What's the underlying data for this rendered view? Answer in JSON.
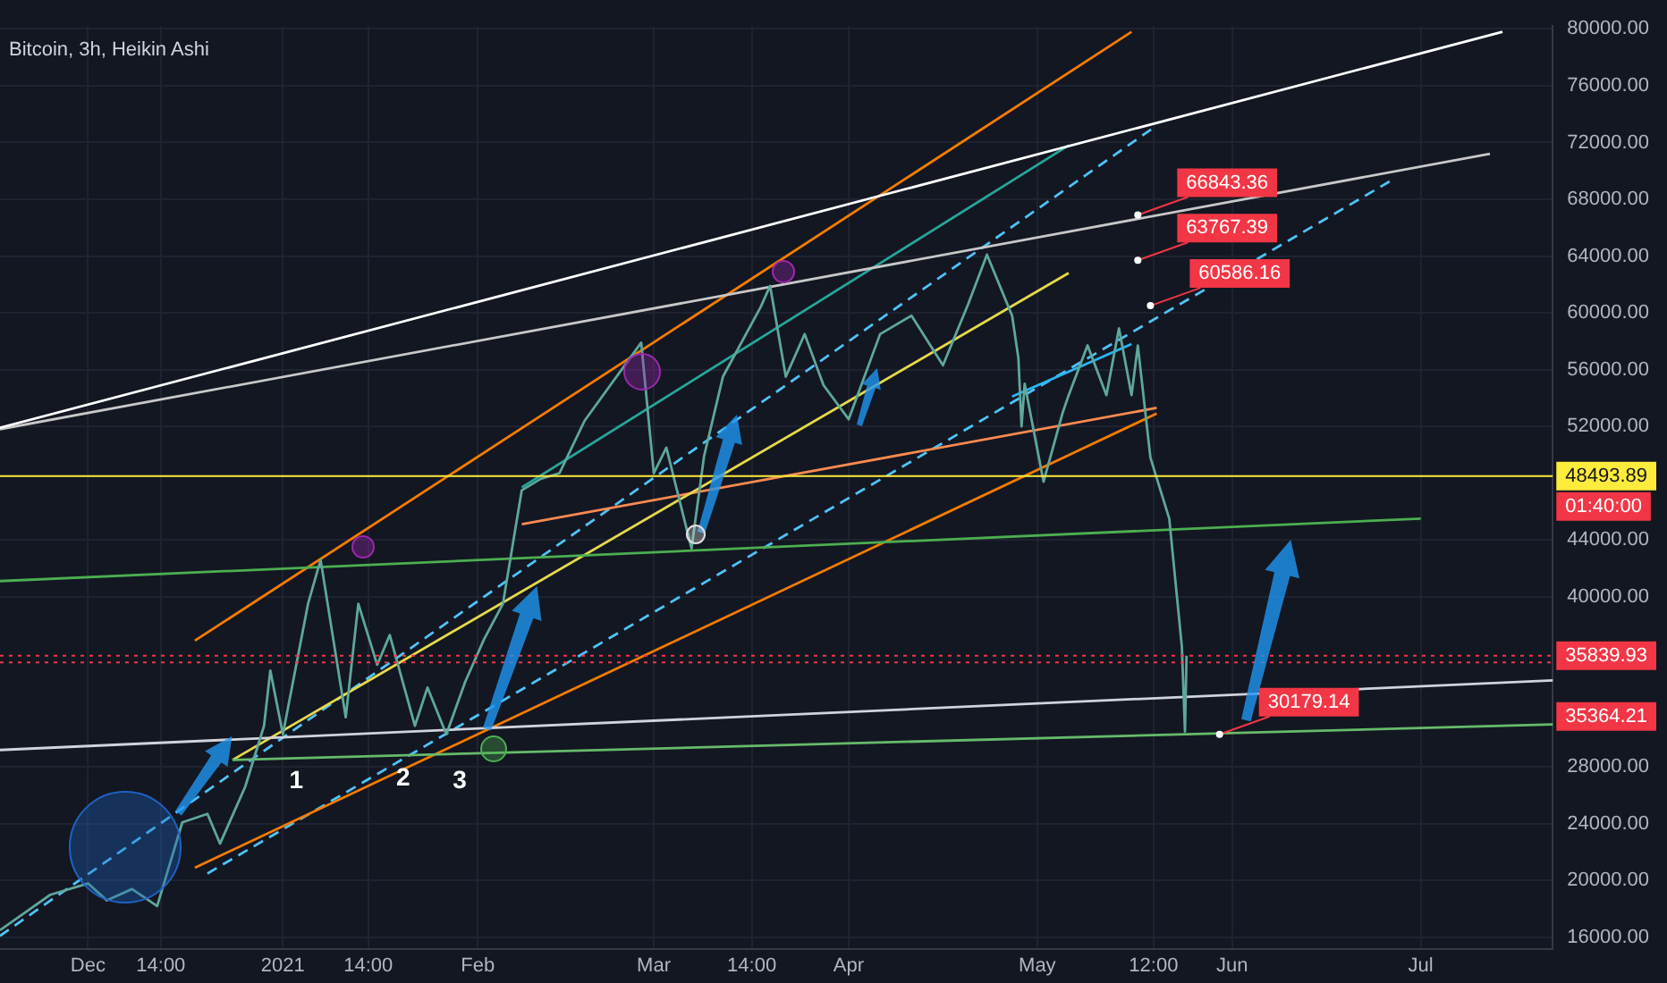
{
  "chart_data": {
    "type": "line",
    "title": "Bitcoin, 3h, Heikin Ashi",
    "xlim": [
      "2020-11-17",
      "2021-07-22"
    ],
    "xticks": [
      {
        "value": "2020-12-01",
        "label": "Dec"
      },
      {
        "value": "2020-12-12T14:00",
        "label": "14:00"
      },
      {
        "value": "2021-01-01",
        "label": "2021"
      },
      {
        "value": "2021-01-14T14:00",
        "label": "14:00"
      },
      {
        "value": "2021-02-01",
        "label": "Feb"
      },
      {
        "value": "2021-03-01",
        "label": "Mar"
      },
      {
        "value": "2021-03-16T14:00",
        "label": "14:00"
      },
      {
        "value": "2021-04-01",
        "label": "Apr"
      },
      {
        "value": "2021-05-01",
        "label": "May"
      },
      {
        "value": "2021-05-19T12:00",
        "label": "12:00"
      },
      {
        "value": "2021-06-01",
        "label": "Jun"
      },
      {
        "value": "2021-07-01",
        "label": "Jul"
      }
    ],
    "ylim": [
      15200,
      80200
    ],
    "yticks": [
      {
        "value": 16000,
        "label": "16000.00"
      },
      {
        "value": 20000,
        "label": "20000.00"
      },
      {
        "value": 24000,
        "label": "24000.00"
      },
      {
        "value": 28000,
        "label": "28000.00"
      },
      {
        "value": 40000,
        "label": "40000.00"
      },
      {
        "value": 44000,
        "label": "44000.00"
      },
      {
        "value": 52000,
        "label": "52000.00"
      },
      {
        "value": 56000,
        "label": "56000.00"
      },
      {
        "value": 60000,
        "label": "60000.00"
      },
      {
        "value": 64000,
        "label": "64000.00"
      },
      {
        "value": 68000,
        "label": "68000.00"
      },
      {
        "value": 72000,
        "label": "72000.00"
      },
      {
        "value": 76000,
        "label": "76000.00"
      },
      {
        "value": 80000,
        "label": "80000.00"
      }
    ],
    "grid": true,
    "legend": false,
    "series": [
      {
        "type": "line",
        "color": "#5fa79b",
        "x": [
          "2020-11-17",
          "2020-11-25",
          "2020-12-01",
          "2020-12-04",
          "2020-12-08",
          "2020-12-12",
          "2020-12-16",
          "2020-12-20",
          "2020-12-22",
          "2020-12-26",
          "2020-12-29",
          "2020-12-30",
          "2021-01-01",
          "2021-01-05",
          "2021-01-07",
          "2021-01-11",
          "2021-01-13",
          "2021-01-16",
          "2021-01-18",
          "2021-01-22",
          "2021-01-24",
          "2021-01-27",
          "2021-01-30",
          "2021-02-02",
          "2021-02-05",
          "2021-02-08",
          "2021-02-11",
          "2021-02-14",
          "2021-02-18",
          "2021-02-27",
          "2021-03-01",
          "2021-03-03",
          "2021-03-07",
          "2021-03-09",
          "2021-03-12",
          "2021-03-18",
          "2021-03-19T12:00",
          "2021-03-22",
          "2021-03-25",
          "2021-03-28",
          "2021-04-01",
          "2021-04-06",
          "2021-04-11",
          "2021-04-16",
          "2021-04-20",
          "2021-04-23",
          "2021-04-27",
          "2021-04-28",
          "2021-04-28T12:00",
          "2021-04-29",
          "2021-05-02",
          "2021-05-05",
          "2021-05-06",
          "2021-05-09",
          "2021-05-12",
          "2021-05-14",
          "2021-05-16",
          "2021-05-17",
          "2021-05-19",
          "2021-05-22",
          "2021-05-24",
          "2021-05-24T12:00",
          "2021-05-24T18:00"
        ],
        "values": [
          16500,
          19000,
          19800,
          18600,
          19400,
          18200,
          24100,
          24700,
          22600,
          26600,
          30900,
          34800,
          30300,
          39500,
          42600,
          31500,
          39500,
          35200,
          37300,
          30900,
          33600,
          30300,
          34000,
          37000,
          39500,
          47500,
          48300,
          48700,
          52400,
          57900,
          48700,
          50500,
          43400,
          49900,
          55500,
          60400,
          61900,
          55500,
          58500,
          54900,
          52500,
          58500,
          59800,
          56300,
          60600,
          64100,
          59800,
          56800,
          52000,
          55000,
          48100,
          52900,
          54200,
          57700,
          54200,
          58900,
          54200,
          57700,
          49800,
          45500,
          36500,
          30500,
          35839.93
        ]
      },
      {
        "type": "line",
        "color": "#ffffff",
        "x": [
          "2020-11-17",
          "2021-07-14"
        ],
        "values": [
          51900,
          79800
        ]
      },
      {
        "type": "line",
        "color": "#c8c8c8",
        "x": [
          "2020-11-17",
          "2021-07-12"
        ],
        "values": [
          51800,
          71200
        ]
      },
      {
        "type": "line",
        "color": "#4caf50",
        "x": [
          "2020-11-17",
          "2021-07-01"
        ],
        "values": [
          41100,
          45500
        ]
      },
      {
        "type": "line",
        "color": "#d1d4dc",
        "x": [
          "2020-11-17",
          "2021-07-22"
        ],
        "values": [
          29200,
          34100
        ]
      },
      {
        "type": "line",
        "color": "#66bb6a",
        "x": [
          "2020-12-24",
          "2021-07-22"
        ],
        "values": [
          28500,
          31000
        ]
      },
      {
        "type": "line",
        "color": "#f57c00",
        "x": [
          "2020-12-18",
          "2021-05-16"
        ],
        "values": [
          36900,
          79800
        ]
      },
      {
        "type": "line",
        "color": "#f57c00",
        "x": [
          "2020-12-18",
          "2021-05-20"
        ],
        "values": [
          20900,
          52900
        ]
      },
      {
        "type": "line",
        "color": "#e6d94a",
        "x": [
          "2020-12-24",
          "2021-05-06"
        ],
        "values": [
          28500,
          62800
        ]
      },
      {
        "type": "line",
        "color": "#26a69a",
        "x": [
          "2021-02-08",
          "2021-05-06"
        ],
        "values": [
          47700,
          71800
        ]
      },
      {
        "type": "line",
        "color": "#ff8a50",
        "x": [
          "2021-02-08",
          "2021-05-20"
        ],
        "values": [
          45100,
          53300
        ]
      },
      {
        "type": "line",
        "color": "#29b6f6",
        "x": [
          "2021-04-27",
          "2021-05-16"
        ],
        "values": [
          54100,
          57800
        ]
      },
      {
        "type": "line",
        "color": "#4fc3f7",
        "line_style": "dashed",
        "x": [
          "2020-11-17",
          "2021-05-20"
        ],
        "values": [
          16100,
          73200
        ]
      },
      {
        "type": "line",
        "color": "#4fc3f7",
        "line_style": "dashed",
        "x": [
          "2020-12-20",
          "2021-06-27"
        ],
        "values": [
          20500,
          69500
        ]
      }
    ],
    "ref_lines": [
      {
        "axis": "y",
        "value": 48493.89,
        "label": "48493.89",
        "color": "#ffeb3b",
        "line_style": "solid"
      },
      {
        "axis": "y",
        "value": 35839.93,
        "label": "35839.93",
        "color": "#f23645",
        "line_style": "dotted"
      },
      {
        "axis": "y",
        "value": 35364.21,
        "label": "35364.21",
        "color": "#f23645",
        "line_style": "dotted"
      }
    ],
    "annotations": [
      {
        "text": "66843.36",
        "x": "2021-05-17",
        "y": 66900
      },
      {
        "text": "63767.39",
        "x": "2021-05-17",
        "y": 63700
      },
      {
        "text": "60586.16",
        "x": "2021-05-19",
        "y": 60500
      },
      {
        "text": "30179.14",
        "x": "2021-05-30",
        "y": 30300
      },
      {
        "text": "1",
        "x": "2021-01-02",
        "y": 28500
      },
      {
        "text": "2",
        "x": "2021-01-19",
        "y": 28700
      },
      {
        "text": "3",
        "x": "2021-01-28",
        "y": 28500
      },
      "01:40:00"
    ]
  }
}
